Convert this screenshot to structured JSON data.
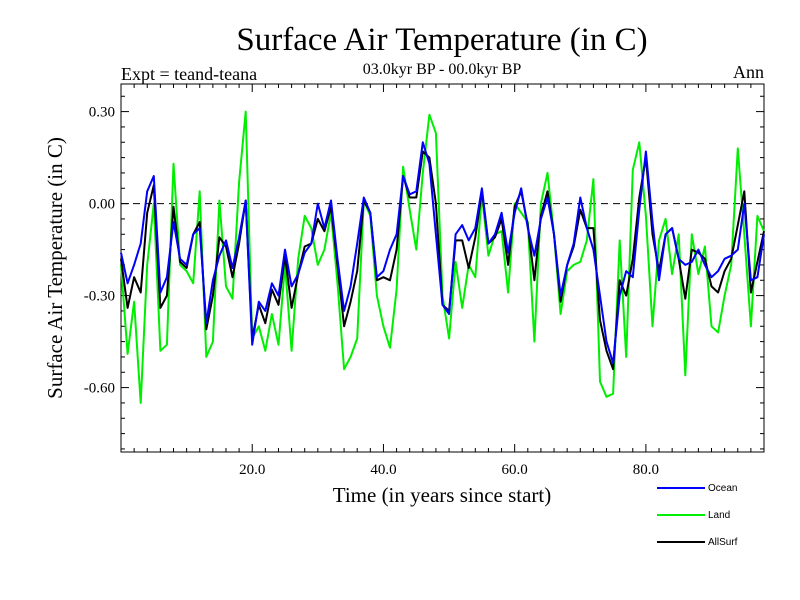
{
  "chart_data": {
    "type": "line",
    "title": "Surface Air Temperature (in C)",
    "subtitle": "03.0kyr BP - 00.0kyr BP",
    "experiment": "Expt = teand-teana",
    "season": "Ann",
    "xlabel": "Time (in years since start)",
    "ylabel": "Surface Air Temperature (in C)",
    "xlim": [
      0,
      98
    ],
    "ylim": [
      -0.81,
      0.39
    ],
    "x_ticks": [
      20,
      40,
      60,
      80
    ],
    "x_tick_labels": [
      "20.0",
      "40.0",
      "60.0",
      "80.0"
    ],
    "y_ticks": [
      0.3,
      0.0,
      -0.3,
      -0.6
    ],
    "y_tick_labels": [
      "0.30",
      "0.00",
      "-0.30",
      "-0.60"
    ],
    "zero_line": 0.0,
    "colors": {
      "Ocean": "#0000ff",
      "Land": "#00ee00",
      "AllSurf": "#000000"
    },
    "x": [
      0,
      1,
      2,
      3,
      4,
      5,
      6,
      7,
      8,
      9,
      10,
      11,
      12,
      13,
      14,
      15,
      16,
      17,
      18,
      19,
      20,
      21,
      22,
      23,
      24,
      25,
      26,
      27,
      28,
      29,
      30,
      31,
      32,
      33,
      34,
      35,
      36,
      37,
      38,
      39,
      40,
      41,
      42,
      43,
      44,
      45,
      46,
      47,
      48,
      49,
      50,
      51,
      52,
      53,
      54,
      55,
      56,
      57,
      58,
      59,
      60,
      61,
      62,
      63,
      64,
      65,
      66,
      67,
      68,
      69,
      70,
      71,
      72,
      73,
      74,
      75,
      76,
      77,
      78,
      79,
      80,
      81,
      82,
      83,
      84,
      85,
      86,
      87,
      88,
      89,
      90,
      91,
      92,
      93,
      94,
      95,
      96,
      97,
      98
    ],
    "series": [
      {
        "name": "Ocean",
        "values": [
          -0.16,
          -0.26,
          -0.2,
          -0.13,
          0.04,
          0.09,
          -0.29,
          -0.24,
          -0.06,
          -0.18,
          -0.2,
          -0.1,
          -0.08,
          -0.39,
          -0.25,
          -0.17,
          -0.12,
          -0.21,
          -0.11,
          0.01,
          -0.46,
          -0.32,
          -0.35,
          -0.26,
          -0.3,
          -0.15,
          -0.27,
          -0.23,
          -0.16,
          -0.13,
          0.0,
          -0.08,
          0.01,
          -0.18,
          -0.35,
          -0.27,
          -0.13,
          0.02,
          -0.03,
          -0.24,
          -0.22,
          -0.15,
          -0.1,
          0.09,
          0.03,
          0.04,
          0.2,
          0.13,
          -0.1,
          -0.33,
          -0.36,
          -0.1,
          -0.07,
          -0.12,
          -0.08,
          0.05,
          -0.13,
          -0.1,
          -0.03,
          -0.16,
          -0.03,
          0.05,
          -0.08,
          -0.17,
          -0.05,
          0.02,
          -0.1,
          -0.3,
          -0.2,
          -0.13,
          0.02,
          -0.08,
          -0.15,
          -0.3,
          -0.45,
          -0.52,
          -0.3,
          -0.22,
          -0.24,
          -0.02,
          0.17,
          -0.06,
          -0.25,
          -0.1,
          -0.08,
          -0.18,
          -0.2,
          -0.19,
          -0.15,
          -0.2,
          -0.24,
          -0.22,
          -0.18,
          -0.17,
          -0.15,
          0.0,
          -0.25,
          -0.24,
          -0.1
        ]
      },
      {
        "name": "Land",
        "values": [
          -0.2,
          -0.49,
          -0.32,
          -0.65,
          -0.2,
          0.0,
          -0.48,
          -0.46,
          0.13,
          -0.2,
          -0.22,
          -0.26,
          0.04,
          -0.5,
          -0.45,
          0.01,
          -0.27,
          -0.31,
          0.07,
          0.3,
          -0.44,
          -0.4,
          -0.48,
          -0.36,
          -0.46,
          -0.2,
          -0.48,
          -0.18,
          -0.04,
          -0.08,
          -0.2,
          -0.15,
          -0.03,
          -0.26,
          -0.54,
          -0.5,
          -0.44,
          0.01,
          -0.04,
          -0.3,
          -0.4,
          -0.47,
          -0.28,
          0.12,
          -0.02,
          -0.15,
          0.1,
          0.29,
          0.23,
          -0.3,
          -0.44,
          -0.19,
          -0.34,
          -0.2,
          -0.24,
          0.03,
          -0.17,
          -0.1,
          -0.09,
          -0.29,
          0.0,
          -0.03,
          -0.06,
          -0.45,
          0.0,
          0.1,
          -0.1,
          -0.36,
          -0.22,
          -0.2,
          -0.19,
          -0.12,
          0.08,
          -0.58,
          -0.63,
          -0.62,
          -0.12,
          -0.5,
          0.11,
          0.2,
          -0.04,
          -0.4,
          -0.12,
          -0.05,
          -0.23,
          -0.1,
          -0.56,
          -0.1,
          -0.23,
          -0.14,
          -0.4,
          -0.42,
          -0.3,
          -0.2,
          0.18,
          -0.1,
          -0.4,
          -0.04,
          -0.09
        ]
      },
      {
        "name": "AllSurf",
        "values": [
          -0.18,
          -0.34,
          -0.24,
          -0.29,
          -0.03,
          0.06,
          -0.34,
          -0.3,
          -0.01,
          -0.19,
          -0.21,
          -0.1,
          -0.06,
          -0.41,
          -0.3,
          -0.11,
          -0.14,
          -0.24,
          -0.13,
          0.01,
          -0.44,
          -0.33,
          -0.39,
          -0.28,
          -0.33,
          -0.17,
          -0.34,
          -0.23,
          -0.14,
          -0.13,
          -0.05,
          -0.09,
          -0.01,
          -0.2,
          -0.4,
          -0.32,
          -0.22,
          0.01,
          -0.03,
          -0.25,
          -0.24,
          -0.25,
          -0.15,
          0.09,
          0.02,
          0.02,
          0.17,
          0.15,
          0.0,
          -0.33,
          -0.35,
          -0.12,
          -0.12,
          -0.21,
          -0.11,
          0.04,
          -0.13,
          -0.11,
          -0.05,
          -0.2,
          -0.01,
          0.04,
          -0.07,
          -0.25,
          -0.04,
          0.04,
          -0.1,
          -0.32,
          -0.2,
          -0.14,
          -0.02,
          -0.08,
          -0.08,
          -0.38,
          -0.48,
          -0.54,
          -0.25,
          -0.3,
          -0.18,
          0.02,
          0.15,
          -0.1,
          -0.22,
          -0.1,
          -0.08,
          -0.18,
          -0.31,
          -0.15,
          -0.16,
          -0.18,
          -0.27,
          -0.29,
          -0.22,
          -0.18,
          -0.07,
          0.04,
          -0.29,
          -0.19,
          -0.09
        ]
      }
    ]
  }
}
